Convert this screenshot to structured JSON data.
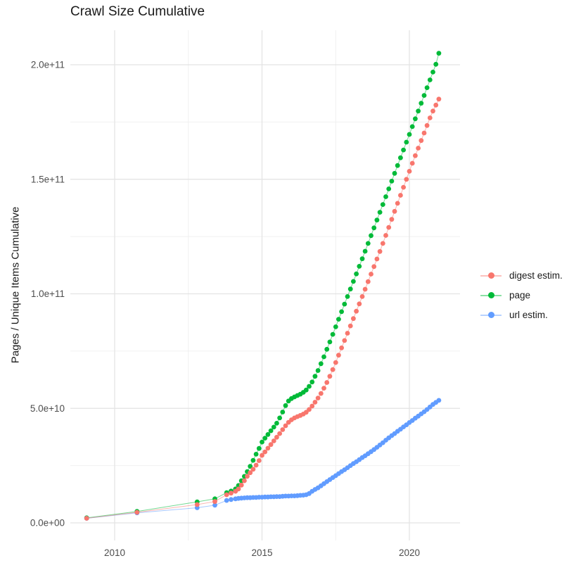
{
  "chart_data": {
    "type": "scatter-line",
    "title": "Crawl Size Cumulative",
    "xlabel": "",
    "ylabel": "Pages / Unique Items Cumulative",
    "legend_position": "right",
    "grid": "major+minor",
    "value_unit_multiplier": 1000000000.0,
    "xlim": [
      2008.5,
      2021.7
    ],
    "ylim_e9": [
      -7.7,
      215
    ],
    "x_ticks": [
      {
        "value": 2010,
        "label": "2010"
      },
      {
        "value": 2015,
        "label": "2015"
      },
      {
        "value": 2020,
        "label": "2020"
      }
    ],
    "x_minor_gridlines": [
      2012.5,
      2017.5
    ],
    "y_ticks": [
      {
        "value_e9": 0,
        "label": "0.0e+00"
      },
      {
        "value_e9": 50,
        "label": "5.0e+10"
      },
      {
        "value_e9": 100,
        "label": "1.0e+11"
      },
      {
        "value_e9": 150,
        "label": "1.5e+11"
      },
      {
        "value_e9": 200,
        "label": "2.0e+11"
      }
    ],
    "y_minor_gridlines_e9": [
      25,
      75,
      125,
      175
    ],
    "x": [
      2009.05,
      2010.76,
      2012.8,
      2013.4,
      2013.8,
      2013.95,
      2014.1,
      2014.2,
      2014.3,
      2014.4,
      2014.5,
      2014.6,
      2014.7,
      2014.8,
      2014.9,
      2015.0,
      2015.1,
      2015.2,
      2015.3,
      2015.4,
      2015.5,
      2015.6,
      2015.7,
      2015.8,
      2015.9,
      2016.0,
      2016.1,
      2016.2,
      2016.3,
      2016.4,
      2016.5,
      2016.6,
      2016.7,
      2016.8,
      2016.9,
      2017.0,
      2017.1,
      2017.2,
      2017.3,
      2017.4,
      2017.5,
      2017.6,
      2017.7,
      2017.8,
      2017.9,
      2018.0,
      2018.1,
      2018.2,
      2018.3,
      2018.4,
      2018.5,
      2018.6,
      2018.7,
      2018.8,
      2018.9,
      2019.0,
      2019.1,
      2019.2,
      2019.3,
      2019.4,
      2019.5,
      2019.6,
      2019.7,
      2019.8,
      2019.9,
      2020.0,
      2020.1,
      2020.2,
      2020.3,
      2020.4,
      2020.5,
      2020.6,
      2020.7,
      2020.8,
      2020.9,
      2021.0
    ],
    "series": [
      {
        "name": "digest estim.",
        "color": "#F8766D",
        "values_e9": [
          2.0,
          4.6,
          8.0,
          9.3,
          12.3,
          13.0,
          13.8,
          14.8,
          16.5,
          18.4,
          20.3,
          21.9,
          23.4,
          25.2,
          27.2,
          29.5,
          31.0,
          32.6,
          34.2,
          35.8,
          37.4,
          39.0,
          40.7,
          42.4,
          43.9,
          45.0,
          45.8,
          46.4,
          46.9,
          47.5,
          48.3,
          49.5,
          51.0,
          52.7,
          54.5,
          56.5,
          58.8,
          61.3,
          64.0,
          66.9,
          70.0,
          73.2,
          76.4,
          79.6,
          82.8,
          86.0,
          89.2,
          92.4,
          95.6,
          98.8,
          102.0,
          105.3,
          108.6,
          111.9,
          115.2,
          118.5,
          122.0,
          125.5,
          129.0,
          132.5,
          136.0,
          139.5,
          143.0,
          146.5,
          150.0,
          153.5,
          157.0,
          160.3,
          163.6,
          166.9,
          170.2,
          173.5,
          176.8,
          179.8,
          182.4,
          185.0
        ]
      },
      {
        "name": "page",
        "color": "#00BA38",
        "values_e9": [
          2.2,
          5.0,
          9.2,
          10.5,
          13.2,
          13.9,
          14.8,
          16.3,
          18.4,
          20.3,
          22.4,
          24.7,
          27.3,
          30.0,
          32.5,
          35.3,
          37.0,
          38.6,
          40.2,
          41.8,
          43.5,
          45.8,
          48.4,
          51.2,
          53.2,
          54.3,
          55.0,
          55.6,
          56.2,
          57.0,
          58.0,
          59.6,
          61.5,
          64.0,
          66.5,
          69.5,
          72.5,
          75.8,
          79.0,
          82.3,
          85.6,
          88.9,
          92.2,
          95.5,
          98.8,
          102.1,
          105.4,
          108.7,
          112.0,
          115.3,
          118.6,
          122.0,
          125.4,
          128.8,
          132.2,
          135.6,
          139.0,
          142.4,
          145.8,
          149.2,
          152.6,
          156.0,
          159.4,
          162.8,
          166.2,
          169.6,
          173.0,
          176.4,
          179.8,
          183.2,
          186.6,
          190.0,
          193.4,
          196.8,
          200.2,
          205.0
        ]
      },
      {
        "name": "url estim.",
        "color": "#619CFF",
        "values_e9": [
          2.0,
          4.4,
          6.6,
          7.7,
          9.8,
          10.2,
          10.5,
          10.7,
          10.8,
          10.9,
          11.0,
          11.0,
          11.1,
          11.1,
          11.2,
          11.2,
          11.3,
          11.3,
          11.4,
          11.4,
          11.5,
          11.5,
          11.6,
          11.7,
          11.7,
          11.8,
          11.8,
          11.9,
          12.0,
          12.1,
          12.3,
          12.8,
          13.8,
          14.6,
          15.3,
          16.2,
          17.1,
          18.0,
          18.9,
          19.8,
          20.6,
          21.5,
          22.4,
          23.2,
          24.1,
          25.0,
          25.9,
          26.7,
          27.6,
          28.5,
          29.3,
          30.2,
          31.1,
          32.0,
          33.0,
          34.0,
          35.0,
          36.1,
          37.1,
          38.1,
          39.0,
          40.0,
          40.9,
          41.9,
          42.8,
          43.8,
          44.7,
          45.7,
          46.6,
          47.6,
          48.5,
          49.5,
          50.6,
          51.7,
          52.6,
          53.5
        ]
      }
    ]
  },
  "style": {
    "major_grid_color": "#e3e3e3",
    "minor_grid_color": "#f0f0f0",
    "tick_label_color": "#4d4d4d",
    "point_radius": 3.4
  }
}
